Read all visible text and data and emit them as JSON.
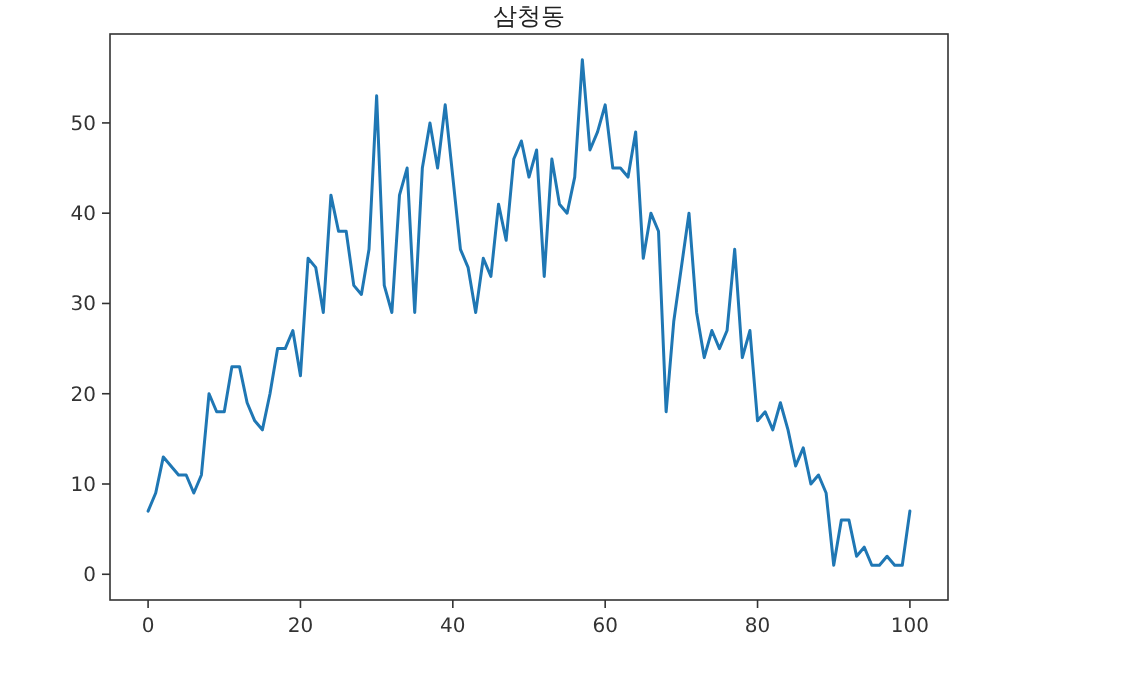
{
  "chart_data": {
    "type": "line",
    "title": "삼청동",
    "x": [
      0,
      1,
      2,
      3,
      4,
      5,
      6,
      7,
      8,
      9,
      10,
      11,
      12,
      13,
      14,
      15,
      16,
      17,
      18,
      19,
      20,
      21,
      22,
      23,
      24,
      25,
      26,
      27,
      28,
      29,
      30,
      31,
      32,
      33,
      34,
      35,
      36,
      37,
      38,
      39,
      40,
      41,
      42,
      43,
      44,
      45,
      46,
      47,
      48,
      49,
      50,
      51,
      52,
      53,
      54,
      55,
      56,
      57,
      58,
      59,
      60,
      61,
      62,
      63,
      64,
      65,
      66,
      67,
      68,
      69,
      70,
      71,
      72,
      73,
      74,
      75,
      76,
      77,
      78,
      79,
      80,
      81,
      82,
      83,
      84,
      85,
      86,
      87,
      88,
      89,
      90,
      91,
      92,
      93,
      94,
      95,
      96,
      97,
      98,
      99,
      100
    ],
    "series": [
      {
        "color": "#1f77b4",
        "values": [
          7,
          9,
          13,
          12,
          11,
          11,
          9,
          11,
          20,
          18,
          18,
          23,
          23,
          19,
          17,
          16,
          20,
          25,
          25,
          27,
          22,
          35,
          34,
          29,
          42,
          38,
          38,
          32,
          31,
          36,
          53,
          32,
          29,
          42,
          45,
          29,
          45,
          50,
          45,
          52,
          44,
          36,
          34,
          29,
          35,
          33,
          41,
          37,
          46,
          48,
          44,
          47,
          33,
          46,
          41,
          40,
          44,
          57,
          47,
          49,
          52,
          45,
          45,
          44,
          49,
          35,
          40,
          38,
          18,
          28,
          34,
          40,
          29,
          24,
          27,
          25,
          27,
          36,
          24,
          27,
          17,
          18,
          16,
          19,
          16,
          12,
          14,
          10,
          11,
          9,
          1,
          6,
          6,
          2,
          3,
          1,
          1,
          2,
          1,
          1,
          7
        ]
      }
    ],
    "xlim": [
      -5,
      105
    ],
    "ylim": [
      -2.85,
      59.85
    ],
    "xticks": [
      0,
      20,
      40,
      60,
      80,
      100
    ],
    "yticks": [
      0,
      10,
      20,
      30,
      40,
      50
    ],
    "line_style": "solid"
  }
}
